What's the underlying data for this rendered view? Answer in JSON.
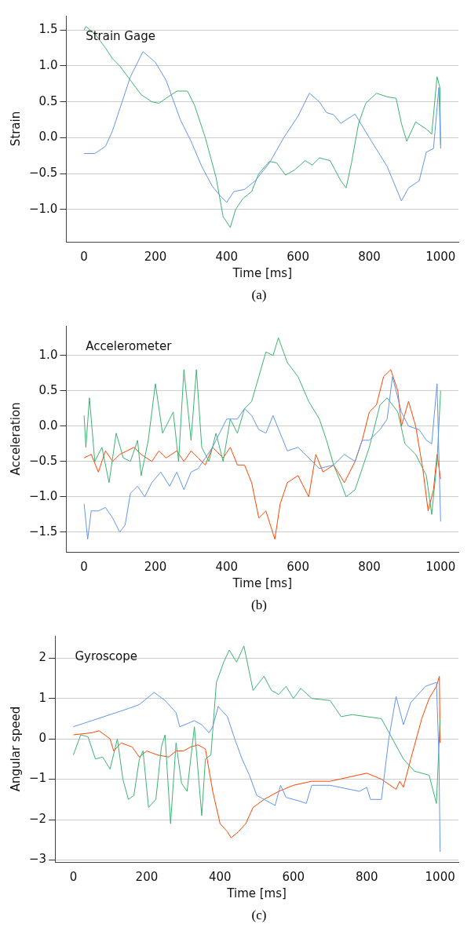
{
  "chart_data": [
    {
      "type": "line",
      "title": "Strain Gage",
      "xlabel": "Time [ms]",
      "ylabel": "Strain",
      "annotations": [
        "(a)"
      ],
      "grid": "y",
      "marker": "none",
      "line_style": "solid",
      "xlim": [
        -50,
        1050
      ],
      "xticks": [
        0,
        200,
        400,
        600,
        800,
        1000
      ],
      "ylim": [
        -1.45,
        1.7
      ],
      "yticks": [
        {
          "value": -1,
          "label": "−1.0"
        },
        {
          "value": -0.5,
          "label": "−0.5"
        },
        {
          "value": 0,
          "label": "0.0"
        },
        {
          "value": 0.5,
          "label": "0.5"
        },
        {
          "value": 1,
          "label": "1.0"
        },
        {
          "value": 1.5,
          "label": "1.5"
        }
      ],
      "series": [
        {
          "color": "#6495ed",
          "x": [
            0,
            30,
            60,
            80,
            100,
            130,
            165,
            200,
            230,
            270,
            300,
            330,
            360,
            380,
            400,
            420,
            450,
            480,
            520,
            560,
            600,
            632,
            660,
            680,
            700,
            720,
            760,
            800,
            850,
            890,
            910,
            940,
            960,
            980,
            995,
            1000
          ],
          "values": [
            -0.22,
            -0.22,
            -0.12,
            0.1,
            0.4,
            0.85,
            1.2,
            1.05,
            0.8,
            0.25,
            -0.05,
            -0.4,
            -0.68,
            -0.8,
            -0.9,
            -0.75,
            -0.72,
            -0.6,
            -0.35,
            0.0,
            0.3,
            0.62,
            0.5,
            0.35,
            0.32,
            0.2,
            0.33,
            0.0,
            -0.4,
            -0.88,
            -0.7,
            -0.6,
            -0.2,
            -0.15,
            0.7,
            -0.1
          ]
        },
        {
          "color": "#3cb371",
          "x": [
            0,
            5,
            30,
            60,
            80,
            100,
            130,
            160,
            190,
            210,
            230,
            260,
            290,
            310,
            340,
            370,
            390,
            410,
            425,
            445,
            470,
            490,
            520,
            540,
            565,
            590,
            620,
            640,
            660,
            690,
            720,
            735,
            750,
            770,
            790,
            820,
            850,
            875,
            890,
            905,
            930,
            960,
            975,
            990,
            998,
            1000
          ],
          "values": [
            1.5,
            1.55,
            1.45,
            1.25,
            1.1,
            1.0,
            0.8,
            0.6,
            0.5,
            0.48,
            0.55,
            0.65,
            0.65,
            0.45,
            0.0,
            -0.55,
            -1.1,
            -1.25,
            -1.0,
            -0.85,
            -0.75,
            -0.5,
            -0.33,
            -0.35,
            -0.52,
            -0.45,
            -0.32,
            -0.38,
            -0.28,
            -0.32,
            -0.6,
            -0.7,
            -0.35,
            0.2,
            0.48,
            0.62,
            0.57,
            0.55,
            0.2,
            -0.05,
            0.22,
            0.12,
            0.05,
            0.85,
            0.7,
            -0.15
          ]
        }
      ]
    },
    {
      "type": "line",
      "title": "Accelerometer",
      "xlabel": "Time [ms]",
      "ylabel": "Acceleration",
      "annotations": [
        "(b)"
      ],
      "grid": "y",
      "marker": "none",
      "line_style": "solid",
      "xlim": [
        -50,
        1050
      ],
      "xticks": [
        0,
        200,
        400,
        600,
        800,
        1000
      ],
      "ylim": [
        -1.78,
        1.42
      ],
      "yticks": [
        {
          "value": -1.5,
          "label": "−1.5"
        },
        {
          "value": -1,
          "label": "−1.0"
        },
        {
          "value": -0.5,
          "label": "−0.5"
        },
        {
          "value": 0,
          "label": "0.0"
        },
        {
          "value": 0.5,
          "label": "0.5"
        },
        {
          "value": 1,
          "label": "1.0"
        }
      ],
      "series": [
        {
          "color": "#6495ed",
          "x": [
            0,
            10,
            20,
            40,
            60,
            80,
            100,
            115,
            130,
            150,
            170,
            190,
            215,
            240,
            260,
            280,
            300,
            320,
            340,
            360,
            380,
            400,
            430,
            450,
            470,
            490,
            510,
            530,
            550,
            570,
            600,
            640,
            660,
            700,
            730,
            760,
            780,
            800,
            830,
            850,
            865,
            890,
            910,
            940,
            960,
            975,
            990,
            1000
          ],
          "values": [
            -1.1,
            -1.6,
            -1.2,
            -1.2,
            -1.15,
            -1.3,
            -1.5,
            -1.4,
            -0.95,
            -0.85,
            -1.0,
            -0.8,
            -0.65,
            -0.85,
            -0.65,
            -0.9,
            -0.65,
            -0.6,
            -0.45,
            -0.3,
            -0.1,
            0.1,
            0.1,
            0.25,
            0.15,
            -0.05,
            -0.1,
            0.15,
            -0.1,
            -0.35,
            -0.3,
            -0.5,
            -0.6,
            -0.55,
            -0.4,
            -0.5,
            -0.2,
            -0.2,
            -0.05,
            0.1,
            0.7,
            0.2,
            0.0,
            -0.05,
            -0.2,
            -0.25,
            0.6,
            -1.35
          ]
        },
        {
          "color": "#3cb371",
          "x": [
            0,
            5,
            15,
            30,
            50,
            70,
            90,
            110,
            130,
            150,
            160,
            180,
            200,
            220,
            250,
            265,
            280,
            300,
            315,
            330,
            350,
            370,
            390,
            410,
            430,
            450,
            470,
            490,
            510,
            530,
            545,
            570,
            600,
            630,
            660,
            680,
            700,
            720,
            735,
            760,
            780,
            800,
            830,
            850,
            880,
            900,
            930,
            960,
            975,
            990,
            1000
          ],
          "values": [
            0.15,
            -0.3,
            0.4,
            -0.5,
            -0.3,
            -0.8,
            -0.1,
            -0.45,
            -0.5,
            -0.2,
            -0.7,
            -0.2,
            0.6,
            -0.1,
            0.2,
            -0.5,
            0.8,
            -0.2,
            0.8,
            -0.3,
            -0.5,
            -0.1,
            -0.5,
            0.1,
            -0.1,
            0.25,
            0.35,
            0.7,
            1.05,
            1.0,
            1.25,
            0.9,
            0.7,
            0.35,
            0.1,
            -0.2,
            -0.55,
            -0.8,
            -1.0,
            -0.9,
            -0.6,
            -0.3,
            0.3,
            0.4,
            0.2,
            -0.25,
            -0.4,
            -0.7,
            -1.25,
            -0.5,
            0.5
          ]
        },
        {
          "color": "#ff4500",
          "x": [
            0,
            20,
            40,
            60,
            80,
            100,
            120,
            140,
            160,
            190,
            210,
            230,
            260,
            280,
            300,
            320,
            340,
            360,
            390,
            410,
            430,
            450,
            470,
            490,
            510,
            535,
            550,
            570,
            600,
            630,
            650,
            670,
            700,
            730,
            760,
            780,
            800,
            820,
            840,
            860,
            880,
            890,
            910,
            930,
            950,
            965,
            980,
            990,
            1000
          ],
          "values": [
            -0.45,
            -0.4,
            -0.65,
            -0.35,
            -0.5,
            -0.4,
            -0.35,
            -0.3,
            -0.4,
            -0.5,
            -0.35,
            -0.45,
            -0.35,
            -0.5,
            -0.35,
            -0.45,
            -0.55,
            -0.3,
            -0.45,
            -0.3,
            -0.55,
            -0.55,
            -0.8,
            -1.3,
            -1.2,
            -1.6,
            -1.1,
            -0.8,
            -0.7,
            -1.0,
            -0.4,
            -0.65,
            -0.55,
            -0.8,
            -0.5,
            -0.2,
            0.2,
            0.3,
            0.7,
            0.8,
            0.5,
            0.0,
            0.35,
            0.0,
            -0.6,
            -1.2,
            -0.9,
            -0.4,
            -0.75
          ]
        }
      ]
    },
    {
      "type": "line",
      "title": "Gyroscope",
      "xlabel": "Time [ms]",
      "ylabel": "Angular speed",
      "annotations": [
        "(c)"
      ],
      "grid": "y",
      "marker": "none",
      "line_style": "solid",
      "xlim": [
        -50,
        1050
      ],
      "xticks": [
        0,
        200,
        400,
        600,
        800,
        1000
      ],
      "ylim": [
        -3.05,
        2.55
      ],
      "yticks": [
        {
          "value": -3,
          "label": "−3"
        },
        {
          "value": -2,
          "label": "−2"
        },
        {
          "value": -1,
          "label": "−1"
        },
        0,
        1,
        2
      ],
      "series": [
        {
          "color": "#6495ed",
          "x": [
            0,
            50,
            100,
            150,
            180,
            220,
            250,
            280,
            290,
            330,
            350,
            370,
            380,
            395,
            420,
            440,
            460,
            480,
            500,
            520,
            550,
            565,
            580,
            620,
            635,
            650,
            700,
            780,
            800,
            810,
            840,
            860,
            880,
            900,
            920,
            960,
            990,
            997,
            1000
          ],
          "values": [
            0.3,
            0.45,
            0.6,
            0.75,
            0.85,
            1.15,
            0.95,
            0.65,
            0.3,
            0.45,
            0.35,
            0.15,
            0.3,
            0.8,
            0.55,
            0.0,
            -0.5,
            -0.9,
            -1.4,
            -1.5,
            -1.65,
            -1.15,
            -1.45,
            -1.55,
            -1.6,
            -1.15,
            -1.15,
            -1.3,
            -1.2,
            -1.5,
            -1.5,
            0.0,
            1.05,
            0.35,
            0.9,
            1.3,
            1.4,
            -0.5,
            -2.8
          ]
        },
        {
          "color": "#3cb371",
          "x": [
            0,
            20,
            40,
            60,
            80,
            100,
            120,
            135,
            150,
            165,
            180,
            190,
            205,
            225,
            240,
            250,
            265,
            280,
            295,
            310,
            330,
            350,
            360,
            375,
            390,
            410,
            425,
            445,
            465,
            490,
            520,
            540,
            560,
            580,
            600,
            620,
            650,
            700,
            730,
            760,
            800,
            840,
            870,
            900,
            930,
            970,
            990,
            1000
          ],
          "values": [
            -0.4,
            0.1,
            0.05,
            -0.5,
            -0.45,
            -0.75,
            0.0,
            -1.0,
            -1.5,
            -1.4,
            -0.5,
            -0.3,
            -1.7,
            -1.5,
            -0.2,
            0.1,
            -2.1,
            -0.1,
            -1.1,
            -1.3,
            0.3,
            -1.9,
            -0.5,
            -0.4,
            1.4,
            1.9,
            2.2,
            1.9,
            2.3,
            1.2,
            1.55,
            1.2,
            1.1,
            1.3,
            1.0,
            1.25,
            1.0,
            0.95,
            0.55,
            0.6,
            0.55,
            0.5,
            0.0,
            -0.5,
            -0.8,
            -0.9,
            -1.6,
            0.5
          ]
        },
        {
          "color": "#ff4500",
          "x": [
            0,
            50,
            70,
            100,
            110,
            130,
            160,
            180,
            200,
            230,
            260,
            280,
            300,
            320,
            340,
            360,
            380,
            400,
            420,
            430,
            450,
            470,
            490,
            520,
            560,
            600,
            650,
            700,
            750,
            800,
            840,
            880,
            890,
            900,
            920,
            950,
            970,
            990,
            998,
            1000
          ],
          "values": [
            0.1,
            0.15,
            0.2,
            0.0,
            -0.3,
            -0.1,
            -0.2,
            -0.45,
            -0.3,
            -0.4,
            -0.45,
            -0.3,
            -0.3,
            -0.2,
            -0.15,
            -0.25,
            -1.3,
            -2.1,
            -2.3,
            -2.45,
            -2.3,
            -2.1,
            -1.7,
            -1.5,
            -1.3,
            -1.15,
            -1.05,
            -1.05,
            -0.95,
            -0.85,
            -1.0,
            -1.25,
            -1.05,
            -1.2,
            -0.5,
            0.5,
            1.0,
            1.3,
            1.55,
            -0.1
          ]
        }
      ]
    }
  ]
}
